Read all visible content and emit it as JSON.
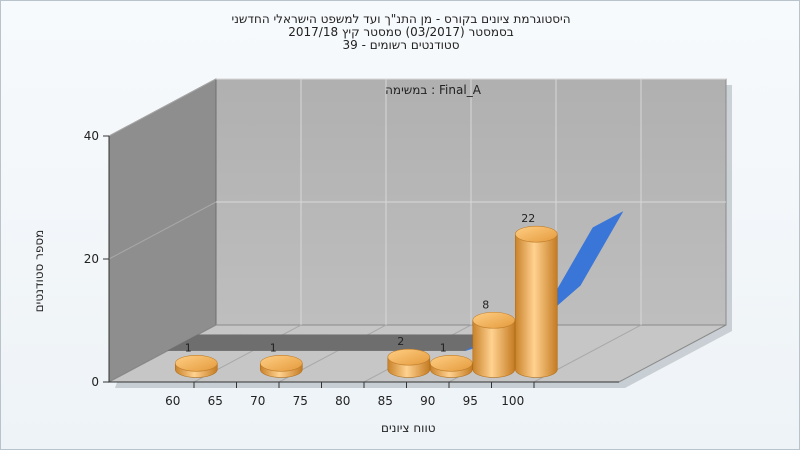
{
  "titles": {
    "line1": "היסטוגרמת ציונים בקורס - מן התנ\"ך ועד למשפט הישראלי החדשני",
    "line2": "בסמסטר  (03/2017)  סמסטר קיץ  2017/18",
    "line3": "סטודנטים רשומים - 39"
  },
  "chart_data": {
    "type": "bar",
    "subtitle": "במשימה : Final_A",
    "xlabel": "טווח ציונים",
    "ylabel": "מספר סטודנטים",
    "x_ticks": [
      "60",
      "65",
      "70",
      "75",
      "80",
      "85",
      "90",
      "95",
      "100"
    ],
    "y_ticks": [
      "0",
      "20",
      "40"
    ],
    "ylim": [
      0,
      40
    ],
    "categories": [
      "60",
      "70",
      "85",
      "90",
      "95",
      "100"
    ],
    "values": [
      1,
      1,
      2,
      1,
      8,
      22
    ],
    "data_labels": [
      "1",
      "1",
      "2",
      "1",
      "8",
      "22"
    ],
    "background_series": {
      "type": "area",
      "x": [
        55,
        60,
        65,
        70,
        75,
        80,
        85,
        90,
        95,
        100,
        105
      ],
      "values": [
        0,
        0,
        0,
        0,
        0,
        0,
        0,
        0,
        2,
        8,
        20
      ]
    },
    "grid": true,
    "colors": {
      "bar": "#f0a440",
      "area": "#3a76d8",
      "wall": "#b4b4b4",
      "sidewall": "#8c8c8c"
    }
  }
}
